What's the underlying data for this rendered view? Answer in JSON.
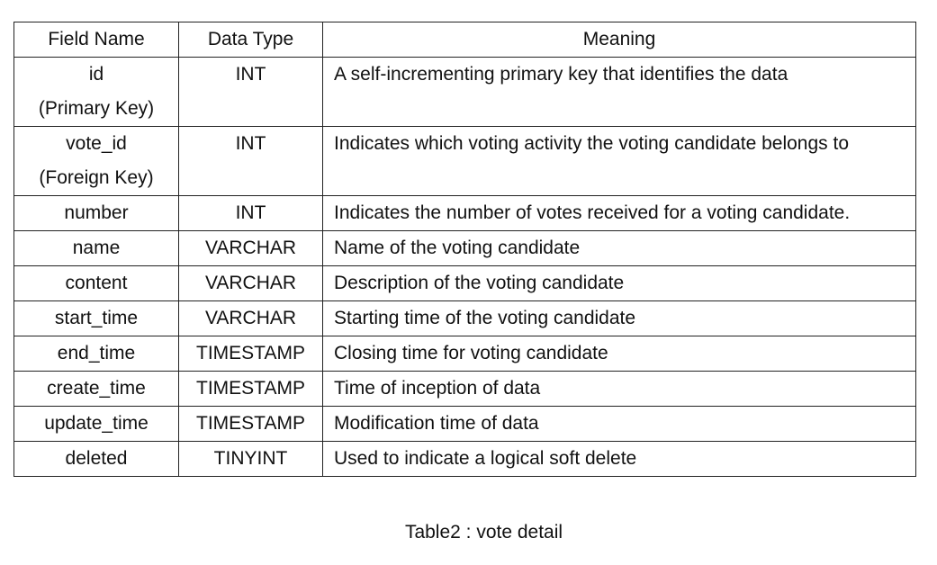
{
  "table": {
    "headers": {
      "field_name": "Field Name",
      "data_type": "Data Type",
      "meaning": "Meaning"
    },
    "rows": [
      {
        "field": [
          "id",
          "(Primary Key)"
        ],
        "type": "INT",
        "meaning": "A self-incrementing primary key that identifies the data"
      },
      {
        "field": [
          "vote_id",
          "(Foreign Key)"
        ],
        "type": "INT",
        "meaning": "Indicates which voting activity the voting candidate belongs to"
      },
      {
        "field": [
          "number"
        ],
        "type": "INT",
        "meaning": "Indicates the number of votes received for a voting candidate."
      },
      {
        "field": [
          "name"
        ],
        "type": "VARCHAR",
        "meaning": "Name of the voting candidate"
      },
      {
        "field": [
          "content"
        ],
        "type": "VARCHAR",
        "meaning": "Description of the voting candidate"
      },
      {
        "field": [
          "start_time"
        ],
        "type": "VARCHAR",
        "meaning": "Starting time of the voting candidate"
      },
      {
        "field": [
          "end_time"
        ],
        "type": "TIMESTAMP",
        "meaning": "Closing time for voting candidate"
      },
      {
        "field": [
          "create_time"
        ],
        "type": "TIMESTAMP",
        "meaning": "Time of inception of data"
      },
      {
        "field": [
          "update_time"
        ],
        "type": "TIMESTAMP",
        "meaning": "Modification time of data"
      },
      {
        "field": [
          "deleted"
        ],
        "type": "TINYINT",
        "meaning": "Used to indicate a logical soft delete"
      }
    ]
  },
  "caption": "Table2 : vote detail"
}
